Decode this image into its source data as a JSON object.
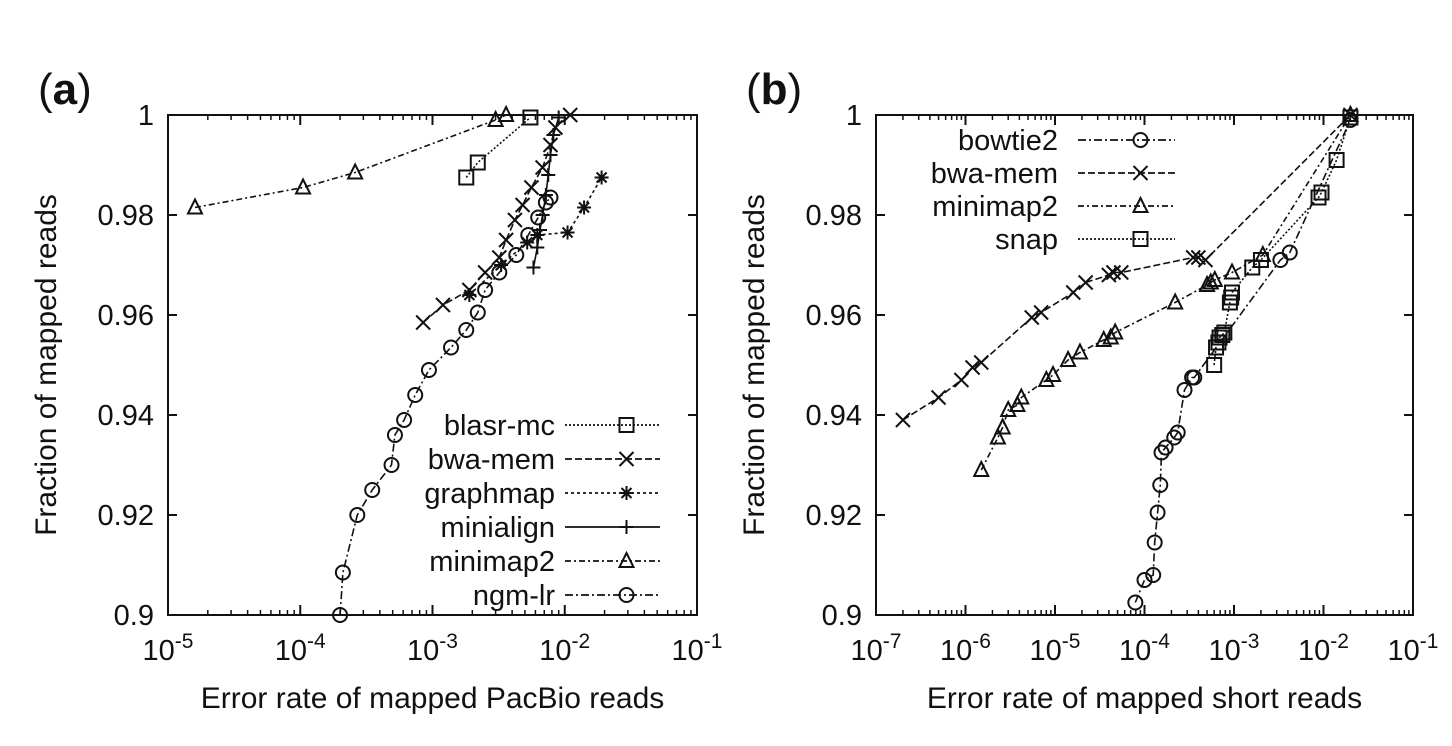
{
  "chart_data": [
    {
      "panel_label": "(a)",
      "type": "line",
      "xlabel": "Error rate of mapped PacBio reads",
      "ylabel": "Fraction of mapped reads",
      "xscale": "log",
      "xlim": [
        1e-05,
        0.1
      ],
      "ylim": [
        0.9,
        1.0
      ],
      "xticks": [
        "10-5",
        "10-4",
        "10-3",
        "10-2",
        "10-1"
      ],
      "yticks": [
        "0.9",
        "0.92",
        "0.94",
        "0.96",
        "0.98",
        "1"
      ],
      "legend_position": "bottom-right",
      "series": [
        {
          "name": "blasr-mc",
          "marker": "square",
          "dash": "2,2",
          "points": [
            [
              0.0018,
              0.9875
            ],
            [
              0.0022,
              0.9905
            ],
            [
              0.0055,
              0.9995
            ]
          ]
        },
        {
          "name": "bwa-mem",
          "marker": "x",
          "dash": "7,3",
          "points": [
            [
              0.00085,
              0.9585
            ],
            [
              0.0012,
              0.962
            ],
            [
              0.0019,
              0.965
            ],
            [
              0.0025,
              0.9685
            ],
            [
              0.0032,
              0.9715
            ],
            [
              0.0036,
              0.975
            ],
            [
              0.0042,
              0.979
            ],
            [
              0.0048,
              0.982
            ],
            [
              0.0056,
              0.9855
            ],
            [
              0.0068,
              0.9895
            ],
            [
              0.0078,
              0.994
            ],
            [
              0.0085,
              0.9975
            ],
            [
              0.011,
              1.0
            ]
          ]
        },
        {
          "name": "graphmap",
          "marker": "asterisk",
          "dash": "3,3",
          "points": [
            [
              0.0019,
              0.964
            ],
            [
              0.0033,
              0.97
            ],
            [
              0.0052,
              0.9745
            ],
            [
              0.0062,
              0.976
            ],
            [
              0.0105,
              0.9765
            ],
            [
              0.014,
              0.9815
            ],
            [
              0.019,
              0.9875
            ]
          ]
        },
        {
          "name": "minialign",
          "marker": "plus",
          "dash": "",
          "points": [
            [
              0.0058,
              0.9695
            ],
            [
              0.0062,
              0.9735
            ],
            [
              0.0065,
              0.977
            ],
            [
              0.0068,
              0.98
            ],
            [
              0.0072,
              0.984
            ],
            [
              0.0075,
              0.988
            ],
            [
              0.0078,
              0.992
            ],
            [
              0.0082,
              0.996
            ],
            [
              0.009,
              0.9995
            ]
          ]
        },
        {
          "name": "minimap2",
          "marker": "triangle",
          "dash": "6,3,2,3",
          "points": [
            [
              1.6e-05,
              0.9815
            ],
            [
              0.000105,
              0.9855
            ],
            [
              0.00026,
              0.9885
            ],
            [
              0.003,
              0.999
            ],
            [
              0.0036,
              1.0
            ]
          ]
        },
        {
          "name": "ngm-lr",
          "marker": "circle",
          "dash": "8,3,2,3",
          "points": [
            [
              0.0002,
              0.9
            ],
            [
              0.00021,
              0.9085
            ],
            [
              0.00027,
              0.92
            ],
            [
              0.00035,
              0.925
            ],
            [
              0.00049,
              0.93
            ],
            [
              0.00052,
              0.936
            ],
            [
              0.00061,
              0.939
            ],
            [
              0.00074,
              0.944
            ],
            [
              0.00094,
              0.949
            ],
            [
              0.00138,
              0.9535
            ],
            [
              0.0018,
              0.957
            ],
            [
              0.0022,
              0.9605
            ],
            [
              0.0025,
              0.965
            ],
            [
              0.0032,
              0.9685
            ],
            [
              0.0043,
              0.972
            ],
            [
              0.0053,
              0.976
            ],
            [
              0.0063,
              0.9795
            ],
            [
              0.0072,
              0.9825
            ],
            [
              0.0078,
              0.9835
            ]
          ]
        }
      ]
    },
    {
      "panel_label": "(b)",
      "type": "line",
      "xlabel": "Error rate of mapped short reads",
      "ylabel": "Fraction of mapped reads",
      "xscale": "log",
      "xlim": [
        1e-07,
        0.1
      ],
      "ylim": [
        0.9,
        1.0
      ],
      "xticks": [
        "10-7",
        "10-6",
        "10-5",
        "10-4",
        "10-3",
        "10-2",
        "10-1"
      ],
      "yticks": [
        "0.9",
        "0.92",
        "0.94",
        "0.96",
        "0.98",
        "1"
      ],
      "legend_position": "top-left",
      "series": [
        {
          "name": "bowtie2",
          "marker": "circle",
          "dash": "8,3,2,3",
          "points": [
            [
              7.9e-05,
              0.9025
            ],
            [
              0.0001,
              0.907
            ],
            [
              0.000125,
              0.908
            ],
            [
              0.00013,
              0.9145
            ],
            [
              0.00014,
              0.9205
            ],
            [
              0.00015,
              0.926
            ],
            [
              0.000155,
              0.9325
            ],
            [
              0.000172,
              0.9335
            ],
            [
              0.000215,
              0.9355
            ],
            [
              0.000235,
              0.9365
            ],
            [
              0.00028,
              0.945
            ],
            [
              0.00034,
              0.9475
            ],
            [
              0.00036,
              0.9475
            ],
            [
              0.0033,
              0.971
            ],
            [
              0.0042,
              0.9725
            ],
            [
              0.02,
              0.999
            ]
          ]
        },
        {
          "name": "bwa-mem",
          "marker": "x",
          "dash": "7,3",
          "points": [
            [
              2e-07,
              0.939
            ],
            [
              5e-07,
              0.9435
            ],
            [
              9e-07,
              0.947
            ],
            [
              1.2e-06,
              0.9495
            ],
            [
              1.5e-06,
              0.9505
            ],
            [
              5.5e-06,
              0.9595
            ],
            [
              7e-06,
              0.9605
            ],
            [
              1.6e-05,
              0.9645
            ],
            [
              2.2e-05,
              0.9665
            ],
            [
              4e-05,
              0.968
            ],
            [
              4.5e-05,
              0.9685
            ],
            [
              5.5e-05,
              0.9685
            ],
            [
              0.00035,
              0.9715
            ],
            [
              0.0004,
              0.9715
            ],
            [
              0.00048,
              0.971
            ],
            [
              0.02,
              1.0
            ]
          ]
        },
        {
          "name": "minimap2",
          "marker": "triangle",
          "dash": "6,3,2,3",
          "points": [
            [
              1.5e-06,
              0.929
            ],
            [
              2.3e-06,
              0.9355
            ],
            [
              2.6e-06,
              0.9375
            ],
            [
              3e-06,
              0.941
            ],
            [
              3.8e-06,
              0.942
            ],
            [
              4.2e-06,
              0.9435
            ],
            [
              8e-06,
              0.947
            ],
            [
              9.5e-06,
              0.948
            ],
            [
              1.4e-05,
              0.951
            ],
            [
              1.9e-05,
              0.9525
            ],
            [
              3.5e-05,
              0.955
            ],
            [
              4.2e-05,
              0.9555
            ],
            [
              4.7e-05,
              0.9565
            ],
            [
              0.00022,
              0.9625
            ],
            [
              0.0005,
              0.966
            ],
            [
              0.00055,
              0.9665
            ],
            [
              0.00061,
              0.967
            ],
            [
              0.00095,
              0.9685
            ],
            [
              0.0021,
              0.972
            ],
            [
              0.02,
              1.0
            ]
          ]
        },
        {
          "name": "snap",
          "marker": "square",
          "dash": "2,2",
          "points": [
            [
              0.0006,
              0.95
            ],
            [
              0.00063,
              0.9535
            ],
            [
              0.00067,
              0.9545
            ],
            [
              0.00069,
              0.9555
            ],
            [
              0.00074,
              0.956
            ],
            [
              0.00078,
              0.9565
            ],
            [
              0.0009,
              0.9625
            ],
            [
              0.00093,
              0.9635
            ],
            [
              0.00095,
              0.9645
            ],
            [
              0.0016,
              0.9695
            ],
            [
              0.002,
              0.971
            ],
            [
              0.0088,
              0.9835
            ],
            [
              0.0095,
              0.9845
            ],
            [
              0.014,
              0.991
            ],
            [
              0.02,
              0.9995
            ]
          ]
        }
      ]
    }
  ]
}
